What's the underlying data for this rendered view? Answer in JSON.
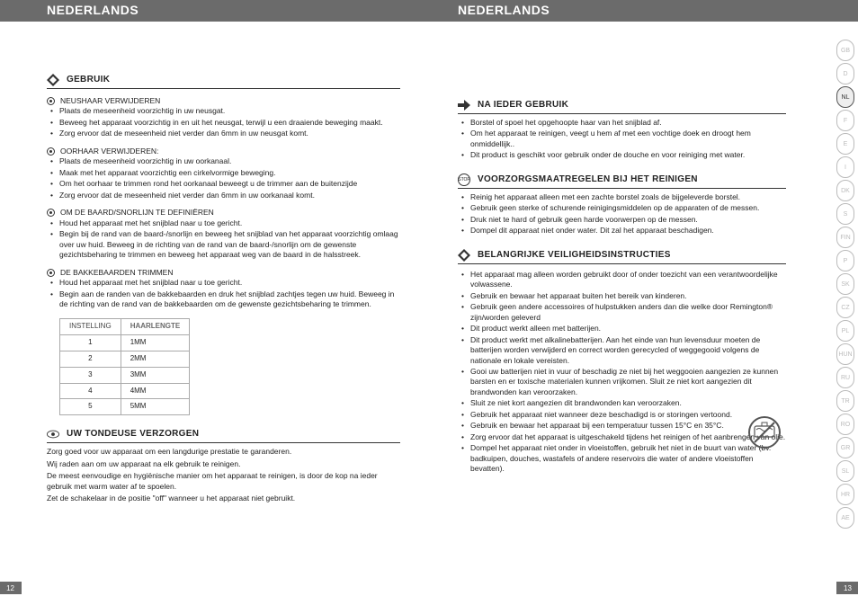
{
  "headerLeft": "NEDERLANDS",
  "headerRight": "NEDERLANDS",
  "pageNumLeft": "12",
  "pageNumRight": "13",
  "left": {
    "s1_title": "GEBRUIK",
    "s1a_head": "NEUSHAAR VERWIJDEREN",
    "s1a_items": [
      "Plaats de meseenheid voorzichtig in uw neusgat.",
      "Beweeg het apparaat voorzichtig in en uit het neusgat, terwijl u een draaiende beweging maakt.",
      "Zorg ervoor dat de meseenheid niet verder dan 6mm in uw neusgat komt."
    ],
    "s1b_head": "OORHAAR VERWIJDEREN:",
    "s1b_items": [
      "Plaats de meseenheid voorzichtig in uw oorkanaal.",
      "Maak met het apparaat voorzichtig een cirkelvormige beweging.",
      "Om het oorhaar te trimmen rond het oorkanaal beweegt u de trimmer aan de buitenzijde",
      "Zorg ervoor dat de meseenheid niet verder dan 6mm in uw oorkanaal komt."
    ],
    "s1c_head": "OM DE BAARD/SNORLIJN TE DEFINIËREN",
    "s1c_items": [
      "Houd het apparaat met het snijblad naar u toe gericht.",
      "Begin bij de rand van de baard-/snorlijn en beweeg het snijblad van het apparaat voorzichtig omlaag over uw huid. Beweeg in de richting van de rand van de baard-/snorlijn om de gewenste gezichtsbeharing te trimmen en beweeg het apparaat weg van de baard in de halsstreek."
    ],
    "s1d_head": "DE BAKKEBAARDEN TRIMMEN",
    "s1d_items": [
      "Houd het apparaat met het snijblad naar u toe gericht.",
      "Begin aan de randen van de bakkebaarden en druk het snijblad zachtjes tegen uw huid. Beweeg in de richting van de rand van de bakkebaarden om de gewenste gezichtsbeharing te trimmen."
    ],
    "table": {
      "h1": "INSTELLING",
      "h2": "HAARLENGTE",
      "rows": [
        [
          "1",
          "1MM"
        ],
        [
          "2",
          "2MM"
        ],
        [
          "3",
          "3MM"
        ],
        [
          "4",
          "4MM"
        ],
        [
          "5",
          "5MM"
        ]
      ]
    },
    "s2_title": "UW TONDEUSE VERZORGEN",
    "s2_paras": [
      "Zorg goed voor uw apparaat om een langdurige prestatie te garanderen.",
      "Wij raden aan om uw apparaat na elk gebruik te reinigen.",
      "De meest eenvoudige en hygiënische manier om het apparaat te reinigen, is door de kop na ieder gebruik met warm water af te spoelen.",
      "Zet de schakelaar in de positie \"off\" wanneer u het apparaat niet gebruikt."
    ]
  },
  "right": {
    "s1_title": "NA IEDER GEBRUIK",
    "s1_items": [
      "Borstel of spoel het opgehoopte haar van het snijblad af.",
      "Om het apparaat te reinigen, veegt u hem af met een vochtige doek en droogt hem onmiddellijk..",
      "Dit product is geschikt voor gebruik onder de douche en voor reiniging met water."
    ],
    "s2_title": "VOORZORGSMAATREGELEN BIJ HET REINIGEN",
    "s2_items": [
      "Reinig het apparaat alleen met een zachte borstel zoals de bijgeleverde borstel.",
      "Gebruik geen sterke of schurende reinigingsmiddelen op de apparaten of de messen.",
      "Druk niet te hard of gebruik geen harde voorwerpen op de messen.",
      "Dompel dit apparaat niet onder water. Dit zal het apparaat beschadigen."
    ],
    "s3_title": "BELANGRIJKE VEILIGHEIDSINSTRUCTIES",
    "s3_items": [
      "Het apparaat mag alleen worden gebruikt door of onder toezicht van een verantwoordelijke volwassene.",
      "Gebruik en bewaar het apparaat buiten het bereik van kinderen.",
      "Gebruik geen andere accessoires of hulpstukken anders dan die welke door Remington® zijn/worden geleverd",
      "Dit product werkt alleen met batterijen.",
      "Dit product werkt met alkalinebatterijen. Aan het einde van hun levensduur moeten de batterijen worden verwijderd en correct worden gerecycled of weggegooid volgens de nationale en lokale vereisten.",
      "Gooi uw batterijen niet in vuur of beschadig ze niet bij het weggooien aangezien ze kunnen barsten en er toxische materialen kunnen vrijkomen. Sluit ze niet kort aangezien dit brandwonden kan veroorzaken.",
      "Sluit ze niet kort aangezien dit brandwonden kan veroorzaken.",
      "Gebruik het apparaat niet wanneer deze beschadigd is or storingen vertoond.",
      "Gebruik en bewaar het apparaat bij een temperatuur tussen 15°C en 35°C.",
      "Zorg ervoor dat het apparaat is uitgeschakeld tijdens het reinigen of het aanbrengen van olie.",
      "Dompel het apparaat niet onder in vloeistoffen, gebruik het niet in de buurt van water (bv. badkuipen, douches, wastafels of andere reservoirs die water of andere vloeistoffen bevatten)."
    ]
  },
  "langs": [
    "GB",
    "D",
    "NL",
    "F",
    "E",
    "I",
    "DK",
    "S",
    "FIN",
    "P",
    "SK",
    "CZ",
    "PL",
    "HUN",
    "RU",
    "TR",
    "RO",
    "GR",
    "SL",
    "HR",
    "AE"
  ],
  "activeLang": "NL"
}
